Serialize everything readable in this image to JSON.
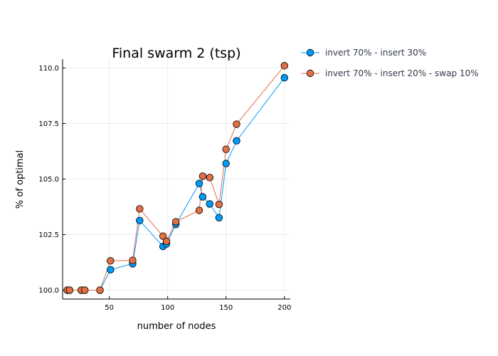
{
  "chart_data": {
    "type": "line",
    "title": "Final swarm 2 (tsp)",
    "xlabel": "number of nodes",
    "ylabel": "% of optimal",
    "xlim": [
      10,
      205
    ],
    "ylim": [
      99.6,
      110.4
    ],
    "xticks": [
      50,
      100,
      150,
      200
    ],
    "yticks": [
      100.0,
      102.5,
      105.0,
      107.5,
      110.0
    ],
    "ytick_labels": [
      "100.0",
      "102.5",
      "105.0",
      "107.5",
      "110.0"
    ],
    "grid": true,
    "legend_position": "outside-top-right",
    "series": [
      {
        "name": "invert 70% - insert 30%",
        "color": "#009af9",
        "x": [
          14,
          16,
          26,
          29,
          42,
          51,
          70,
          76,
          96,
          99,
          107,
          127,
          130,
          136,
          144,
          150,
          159,
          200
        ],
        "y": [
          100.0,
          100.0,
          100.0,
          100.0,
          100.0,
          100.92,
          101.19,
          103.13,
          101.97,
          102.08,
          102.96,
          104.8,
          104.2,
          103.88,
          103.26,
          105.7,
          106.72,
          109.56
        ]
      },
      {
        "name": "invert 70% - insert 20% - swap 10%",
        "color": "#e26f46",
        "x": [
          14,
          16,
          26,
          29,
          42,
          51,
          70,
          76,
          96,
          99,
          107,
          127,
          130,
          136,
          144,
          150,
          159,
          200
        ],
        "y": [
          100.0,
          100.0,
          100.0,
          100.0,
          100.0,
          101.32,
          101.34,
          103.66,
          102.43,
          102.2,
          103.08,
          103.59,
          105.13,
          105.07,
          103.86,
          106.34,
          107.47,
          110.1
        ]
      }
    ]
  }
}
